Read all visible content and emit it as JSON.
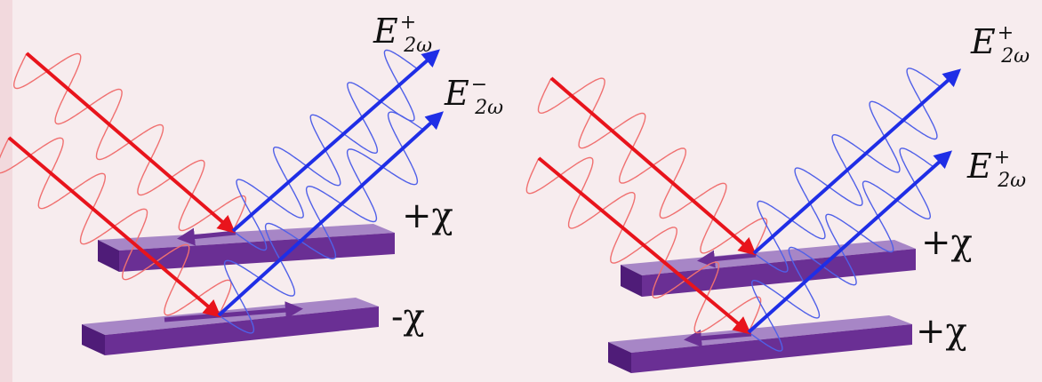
{
  "left_panel": {
    "upper_field": {
      "base": "E",
      "sup": "+",
      "sub": "2ω"
    },
    "lower_field": {
      "base": "E",
      "sup": "−",
      "sub": "2ω"
    },
    "upper_sign": "+χ",
    "lower_sign": "-χ"
  },
  "right_panel": {
    "upper_field": {
      "base": "E",
      "sup": "+",
      "sub": "2ω"
    },
    "lower_field": {
      "base": "E",
      "sup": "+",
      "sub": "2ω"
    },
    "upper_sign": "+χ",
    "lower_sign": "+χ"
  },
  "colors": {
    "incident_beam": "#e8141c",
    "incident_wave": "#f07070",
    "reflected_beam": "#1f2ee6",
    "reflected_wave": "#5060e8",
    "slab_top": "#a786c6",
    "slab_front": "#6a2f94",
    "slab_side": "#4f1c78",
    "background": "#f7ecee"
  }
}
